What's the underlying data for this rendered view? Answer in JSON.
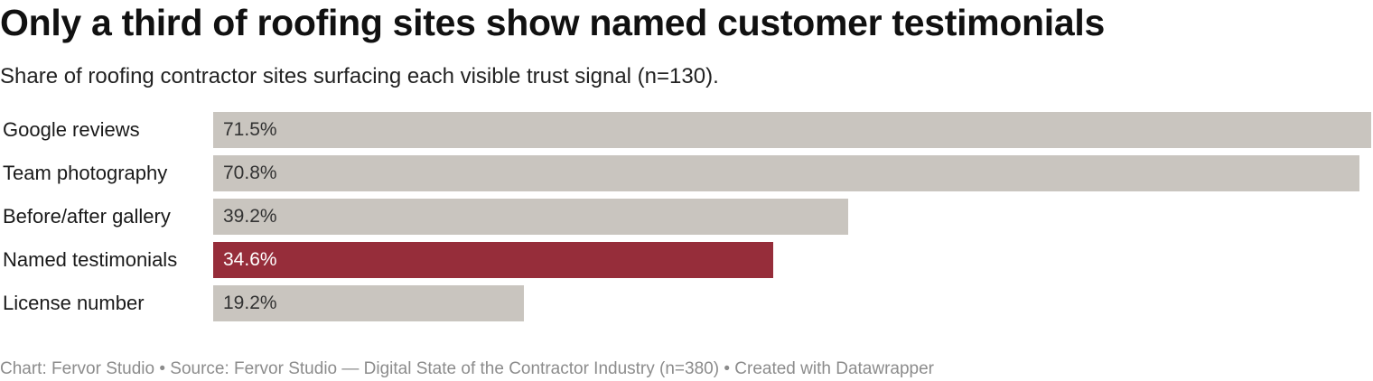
{
  "header": {
    "title": "Only a third of roofing sites show named customer testimonials",
    "subtitle": "Share of roofing contractor sites surfacing each visible trust signal (n=130)."
  },
  "chart_data": {
    "type": "bar",
    "orientation": "horizontal",
    "title": "Only a third of roofing sites show named customer testimonials",
    "subtitle": "Share of roofing contractor sites surfacing each visible trust signal (n=130).",
    "categories": [
      "Google reviews",
      "Team photography",
      "Before/after gallery",
      "Named testimonials",
      "License number"
    ],
    "values": [
      71.5,
      70.8,
      39.2,
      34.6,
      19.2
    ],
    "value_labels": [
      "71.5%",
      "70.8%",
      "39.2%",
      "34.6%",
      "19.2%"
    ],
    "unit": "%",
    "xlim": [
      0,
      71.5
    ],
    "highlight_category": "Named testimonials",
    "colors": {
      "default": "#c9c5bf",
      "highlight": "#962d3a",
      "label_default": "#333333",
      "label_highlight": "#ffffff"
    },
    "grid": false,
    "legend": "none"
  },
  "footer": {
    "chart_credit": "Chart: Fervor Studio",
    "source": "Source: Fervor Studio — Digital State of the Contractor Industry (n=380)",
    "created_with": "Created with Datawrapper",
    "separator": "•"
  }
}
